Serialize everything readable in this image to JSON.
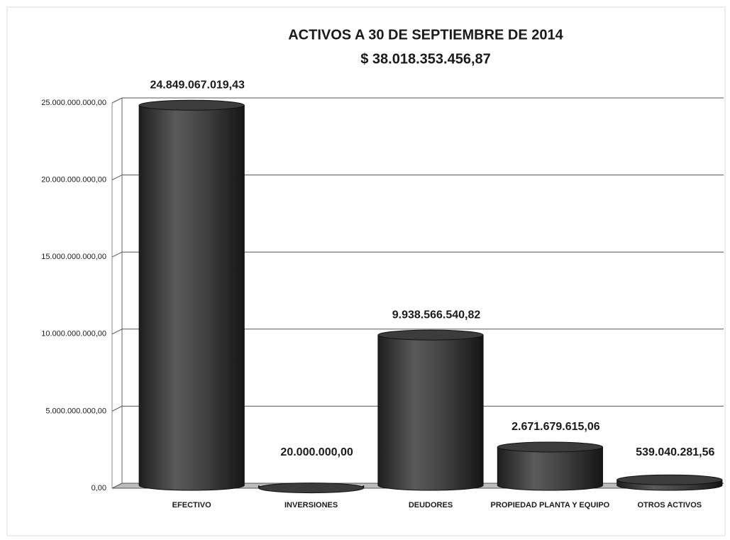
{
  "chart_data": {
    "type": "bar3d",
    "title": "ACTIVOS  A  30 DE  SEPTIEMBRE DE 2014",
    "subtitle": "$ 38.018.353.456,87",
    "categories": [
      "EFECTIVO",
      "INVERSIONES",
      "DEUDORES",
      "PROPIEDAD PLANTA Y EQUIPO",
      "OTROS ACTIVOS"
    ],
    "values": [
      24849067019.43,
      20000000,
      9938566540.82,
      2671679615.06,
      539040281.56
    ],
    "value_labels": [
      "24.849.067.019,43",
      "20.000.000,00",
      "9.938.566.540,82",
      "2.671.679.615,06",
      "539.040.281,56"
    ],
    "color": "#3c3c3c",
    "ylim": [
      0,
      25000000000
    ],
    "yticks": [
      {
        "value": 0,
        "label": "0,00"
      },
      {
        "value": 5000000000,
        "label": "5.000.000.000,00"
      },
      {
        "value": 10000000000,
        "label": "10.000.000.000,00"
      },
      {
        "value": 15000000000,
        "label": "15.000.000.000,00"
      },
      {
        "value": 20000000000,
        "label": "20.000.000.000,00"
      },
      {
        "value": 25000000000,
        "label": "25.000.000.000,00"
      }
    ],
    "grid": true
  }
}
